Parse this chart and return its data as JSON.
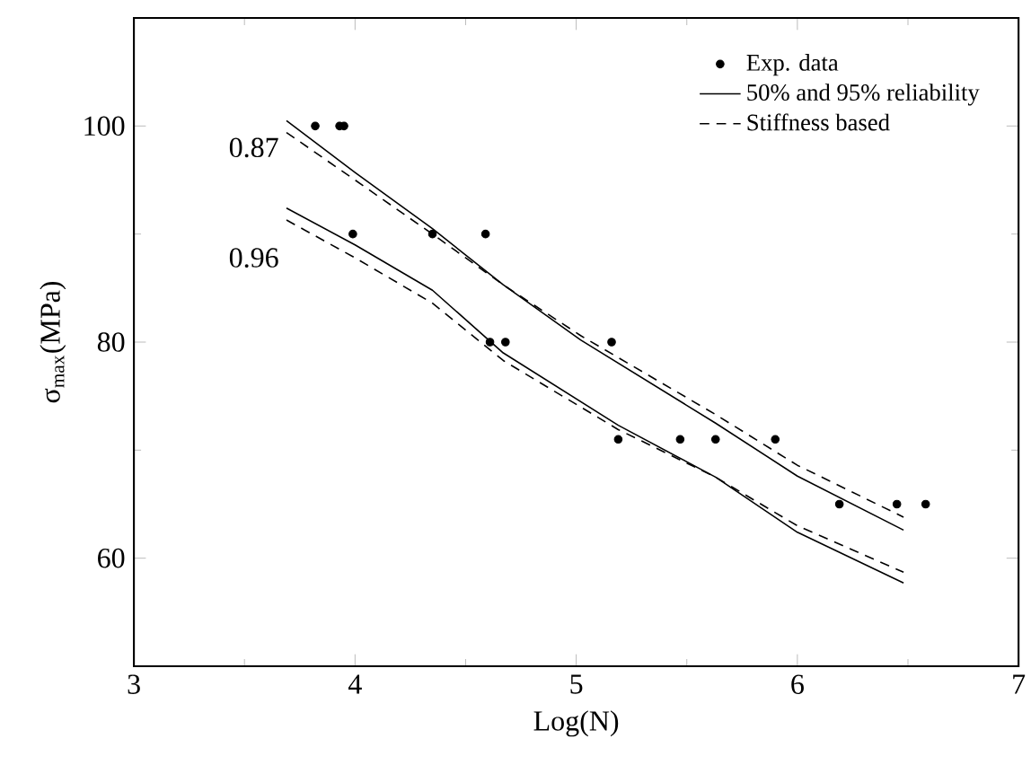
{
  "chart_data": {
    "type": "line",
    "xlabel": "Log(N)",
    "ylabel": "σ$_{max}$(MPa)",
    "xlim": [
      3,
      7
    ],
    "ylim": [
      50,
      110
    ],
    "xticks": [
      3,
      {
        "value": 3.5,
        "label": null
      },
      4,
      {
        "value": 4.5,
        "label": null
      },
      5,
      {
        "value": 5.5,
        "label": null
      },
      6,
      {
        "value": 6.5,
        "label": null
      },
      7
    ],
    "yticks": [
      60,
      {
        "value": 70,
        "label": null
      },
      80,
      {
        "value": 90,
        "label": null
      },
      100
    ],
    "legend": "top right",
    "grid": false,
    "series": [
      {
        "name": "Exp. data",
        "type": "scatter",
        "marker": "circle",
        "color": "#000000",
        "x": [
          3.82,
          3.93,
          3.95,
          3.99,
          4.35,
          4.59,
          4.61,
          4.68,
          5.16,
          5.19,
          5.47,
          5.63,
          5.9,
          6.19,
          6.45,
          6.58
        ],
        "values": [
          100,
          100,
          100,
          90,
          90,
          90,
          80,
          80,
          80,
          71,
          71,
          71,
          71,
          65,
          65,
          65
        ]
      },
      {
        "name": "50% and 95% reliability",
        "marker": "none",
        "line_style": "solid",
        "color": "#000000",
        "x": [
          3.69,
          4.0,
          4.35,
          4.67,
          5.02,
          5.63,
          6.0,
          6.48
        ],
        "values": [
          100.5,
          95.7,
          90.5,
          85.3,
          80.2,
          72.5,
          67.6,
          62.6
        ]
      },
      {
        "marker": "none",
        "line_style": "solid",
        "color": "#000000",
        "x": [
          3.69,
          4.0,
          4.35,
          4.67,
          5.19,
          5.63,
          6.0,
          6.48
        ],
        "values": [
          92.4,
          89,
          84.8,
          79,
          72.3,
          67.5,
          62.4,
          57.7
        ]
      },
      {
        "name": "Stiffness based",
        "marker": "none",
        "line_style": "dashed",
        "color": "#000000",
        "x": [
          3.69,
          4.0,
          4.35,
          4.67,
          5.02,
          5.63,
          6.0,
          6.48
        ],
        "values": [
          99.4,
          95,
          90,
          85.3,
          80.6,
          73.3,
          68.6,
          63.8
        ]
      },
      {
        "marker": "none",
        "line_style": "dashed",
        "color": "#000000",
        "x": [
          3.69,
          4.0,
          4.35,
          4.67,
          5.19,
          5.63,
          6.0,
          6.48
        ],
        "values": [
          91.3,
          87.8,
          83.6,
          78.3,
          71.9,
          67.5,
          63,
          58.7
        ]
      }
    ],
    "annotations": [
      "0.87",
      "0.96"
    ]
  }
}
